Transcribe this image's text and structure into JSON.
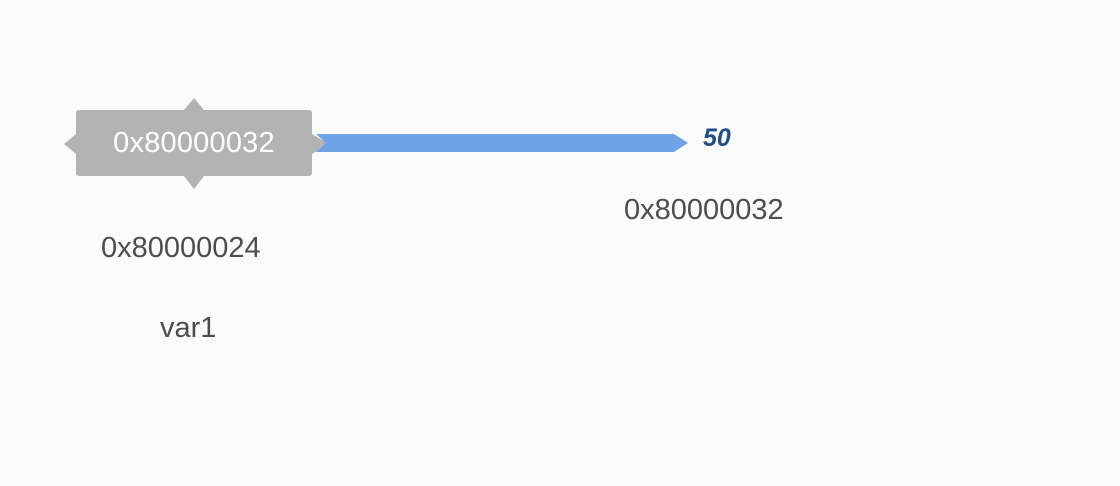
{
  "pointer": {
    "value": "0x80000032",
    "address": "0x80000024",
    "name": "var1"
  },
  "target": {
    "value": "50",
    "address": "0x80000032"
  },
  "colors": {
    "pointer_box": "#b3b3b3",
    "arrow": "#6ea3e8",
    "target_value": "#1f4e86",
    "label_text": "#4d4d4d",
    "background": "#fbfbfb"
  }
}
